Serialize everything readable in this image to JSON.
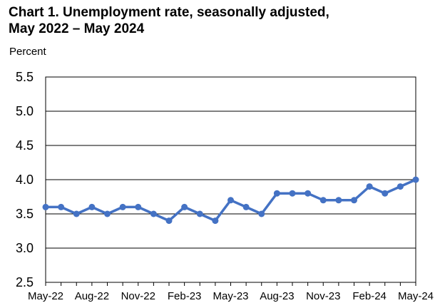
{
  "chart_data": {
    "type": "line",
    "title_line1": "Chart 1. Unemployment rate, seasonally adjusted,",
    "title_line2": "May 2022 – May 2024",
    "ylabel": "Percent",
    "xlabel": "",
    "ylim": [
      2.5,
      5.5
    ],
    "yticks": [
      "5.5",
      "5.0",
      "4.5",
      "4.0",
      "3.5",
      "3.0",
      "2.5"
    ],
    "ytick_values": [
      5.5,
      5.0,
      4.5,
      4.0,
      3.5,
      3.0,
      2.5
    ],
    "x": [
      "May-22",
      "Jun-22",
      "Jul-22",
      "Aug-22",
      "Sep-22",
      "Oct-22",
      "Nov-22",
      "Dec-22",
      "Jan-23",
      "Feb-23",
      "Mar-23",
      "Apr-23",
      "May-23",
      "Jun-23",
      "Jul-23",
      "Aug-23",
      "Sep-23",
      "Oct-23",
      "Nov-23",
      "Dec-23",
      "Jan-24",
      "Feb-24",
      "Mar-24",
      "Apr-24",
      "May-24"
    ],
    "xtick_labels": [
      "May-22",
      "Aug-22",
      "Nov-22",
      "Feb-23",
      "May-23",
      "Aug-23",
      "Nov-23",
      "Feb-24",
      "May-24"
    ],
    "series": [
      {
        "values": [
          3.6,
          3.6,
          3.5,
          3.6,
          3.5,
          3.6,
          3.6,
          3.5,
          3.4,
          3.6,
          3.5,
          3.4,
          3.7,
          3.6,
          3.5,
          3.8,
          3.8,
          3.8,
          3.7,
          3.7,
          3.7,
          3.9,
          3.8,
          3.9,
          4.0
        ],
        "color": "#4472C4"
      }
    ],
    "grid": true,
    "legend": "none"
  }
}
